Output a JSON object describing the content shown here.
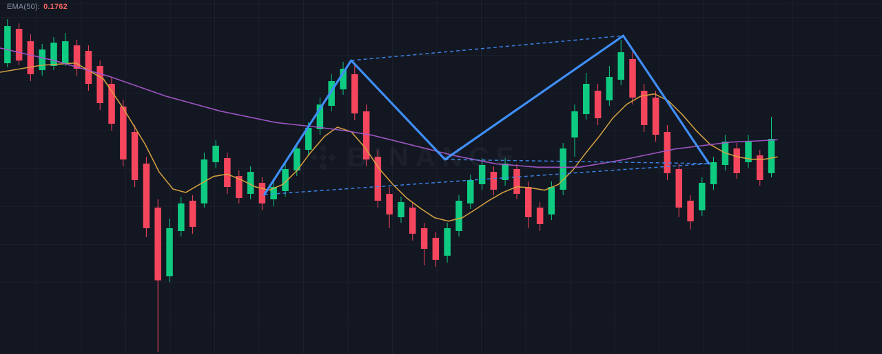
{
  "legend": {
    "label": "EMA(50):",
    "value": "0.1762",
    "value_color": "#f4655f"
  },
  "watermark": {
    "text": "BINANCE"
  },
  "colors": {
    "background": "#131722",
    "grid": "rgba(150,160,180,0.06)",
    "bull": "#0ecb81",
    "bear": "#f6465d",
    "ema_fast": "#d9a441",
    "ma_slow": "#a557c9",
    "pattern": "#3f8ef7"
  },
  "chart_data": {
    "type": "candlestick",
    "title": "",
    "grid": true,
    "price_axis_visible": false,
    "time_axis_visible": false,
    "ylim": [
      0.1591,
      0.19
    ],
    "ohlc_format": [
      "open",
      "high",
      "low",
      "close"
    ],
    "candles": [
      [
        0.18448,
        0.18832,
        0.18412,
        0.18772
      ],
      [
        0.18748,
        0.18796,
        0.1843,
        0.18472
      ],
      [
        0.1864,
        0.187,
        0.18292,
        0.18352
      ],
      [
        0.18388,
        0.18616,
        0.1834,
        0.18568
      ],
      [
        0.18424,
        0.18676,
        0.18388,
        0.18628
      ],
      [
        0.18448,
        0.18712,
        0.18424,
        0.1864
      ],
      [
        0.18604,
        0.18652,
        0.1834,
        0.184
      ],
      [
        0.18556,
        0.18604,
        0.18208,
        0.18268
      ],
      [
        0.18424,
        0.18472,
        0.1804,
        0.181
      ],
      [
        0.18268,
        0.18328,
        0.1786,
        0.1792
      ],
      [
        0.1807,
        0.1813,
        0.17548,
        0.17608
      ],
      [
        0.17848,
        0.17908,
        0.17368,
        0.17428
      ],
      [
        0.17572,
        0.17632,
        0.1693,
        0.17008
      ],
      [
        0.17188,
        0.1726,
        0.15928,
        0.16552
      ],
      [
        0.16588,
        0.17092,
        0.1654,
        0.17008
      ],
      [
        0.16984,
        0.17284,
        0.16936,
        0.17224
      ],
      [
        0.17248,
        0.17296,
        0.1696,
        0.1702
      ],
      [
        0.17224,
        0.17668,
        0.17188,
        0.17608
      ],
      [
        0.17584,
        0.17776,
        0.17536,
        0.17728
      ],
      [
        0.1762,
        0.17668,
        0.17308,
        0.17368
      ],
      [
        0.17464,
        0.17512,
        0.17224,
        0.17272
      ],
      [
        0.17308,
        0.17548,
        0.1726,
        0.175
      ],
      [
        0.17404,
        0.17452,
        0.17164,
        0.17224
      ],
      [
        0.1726,
        0.17428,
        0.172,
        0.17368
      ],
      [
        0.17332,
        0.17572,
        0.17284,
        0.17524
      ],
      [
        0.17512,
        0.17752,
        0.17464,
        0.17704
      ],
      [
        0.17692,
        0.17932,
        0.17644,
        0.17884
      ],
      [
        0.17872,
        0.18148,
        0.17824,
        0.18088
      ],
      [
        0.18076,
        0.18352,
        0.18028,
        0.18292
      ],
      [
        0.1822,
        0.1846,
        0.18172,
        0.184
      ],
      [
        0.18352,
        0.18448,
        0.1795,
        0.1801
      ],
      [
        0.18028,
        0.18088,
        0.17548,
        0.17608
      ],
      [
        0.17632,
        0.17692,
        0.17188,
        0.17248
      ],
      [
        0.17308,
        0.17368,
        0.17008,
        0.17128
      ],
      [
        0.17104,
        0.17284,
        0.17056,
        0.17236
      ],
      [
        0.17188,
        0.17236,
        0.169,
        0.1696
      ],
      [
        0.17008,
        0.17056,
        0.16684,
        0.16828
      ],
      [
        0.16924,
        0.16972,
        0.16672,
        0.16732
      ],
      [
        0.16768,
        0.17056,
        0.16708,
        0.17008
      ],
      [
        0.16984,
        0.17296,
        0.16936,
        0.17248
      ],
      [
        0.17224,
        0.17476,
        0.17176,
        0.17428
      ],
      [
        0.17392,
        0.1762,
        0.17344,
        0.1756
      ],
      [
        0.175,
        0.17548,
        0.17296,
        0.17344
      ],
      [
        0.17428,
        0.1762,
        0.1738,
        0.17572
      ],
      [
        0.17524,
        0.17572,
        0.1726,
        0.17308
      ],
      [
        0.17368,
        0.17416,
        0.17008,
        0.17104
      ],
      [
        0.17188,
        0.17236,
        0.16984,
        0.17044
      ],
      [
        0.17128,
        0.17416,
        0.1708,
        0.17368
      ],
      [
        0.17344,
        0.17752,
        0.17296,
        0.17704
      ],
      [
        0.178,
        0.18088,
        0.17632,
        0.18028
      ],
      [
        0.18004,
        0.18364,
        0.17956,
        0.18268
      ],
      [
        0.18208,
        0.18268,
        0.17908,
        0.17968
      ],
      [
        0.18124,
        0.18424,
        0.18076,
        0.18328
      ],
      [
        0.18304,
        0.18652,
        0.18256,
        0.18544
      ],
      [
        0.18484,
        0.1858,
        0.18088,
        0.18148
      ],
      [
        0.18208,
        0.18268,
        0.17848,
        0.17908
      ],
      [
        0.18148,
        0.18208,
        0.17764,
        0.17824
      ],
      [
        0.17848,
        0.17908,
        0.17428,
        0.17488
      ],
      [
        0.17524,
        0.17572,
        0.17104,
        0.17188
      ],
      [
        0.17248,
        0.17296,
        0.16996,
        0.17068
      ],
      [
        0.17164,
        0.17452,
        0.17116,
        0.17404
      ],
      [
        0.17392,
        0.17632,
        0.17344,
        0.17584
      ],
      [
        0.1756,
        0.17824,
        0.17512,
        0.17764
      ],
      [
        0.17704,
        0.17752,
        0.1744,
        0.17488
      ],
      [
        0.17584,
        0.17824,
        0.17536,
        0.17764
      ],
      [
        0.17644,
        0.17692,
        0.1738,
        0.17428
      ],
      [
        0.17488,
        0.1798,
        0.17452,
        0.17788
      ]
    ],
    "overlays": [
      {
        "name": "EMA(50)",
        "type": "line",
        "color_key": "ema_fast",
        "points": [
          [
            -0.6,
            0.1837
          ],
          [
            2.9,
            0.1843
          ],
          [
            5.9,
            0.1845
          ],
          [
            8.3,
            0.1831
          ],
          [
            10.1,
            0.1804
          ],
          [
            11.9,
            0.1774
          ],
          [
            13.1,
            0.175
          ],
          [
            14.3,
            0.1735
          ],
          [
            15.4,
            0.1732
          ],
          [
            16.6,
            0.1739
          ],
          [
            17.8,
            0.1746
          ],
          [
            19.0,
            0.1748
          ],
          [
            20.2,
            0.1743
          ],
          [
            21.4,
            0.1737
          ],
          [
            22.6,
            0.1734
          ],
          [
            23.8,
            0.1739
          ],
          [
            25.0,
            0.1751
          ],
          [
            26.2,
            0.1767
          ],
          [
            27.4,
            0.1781
          ],
          [
            28.5,
            0.1789
          ],
          [
            29.7,
            0.1785
          ],
          [
            30.9,
            0.1771
          ],
          [
            32.1,
            0.1753
          ],
          [
            33.3,
            0.1739
          ],
          [
            34.5,
            0.1727
          ],
          [
            35.7,
            0.1718
          ],
          [
            36.9,
            0.171
          ],
          [
            38.1,
            0.1707
          ],
          [
            39.3,
            0.171
          ],
          [
            40.4,
            0.1717
          ],
          [
            41.6,
            0.1725
          ],
          [
            42.8,
            0.1732
          ],
          [
            44.0,
            0.1737
          ],
          [
            45.2,
            0.1736
          ],
          [
            46.4,
            0.1734
          ],
          [
            47.6,
            0.1739
          ],
          [
            48.8,
            0.1751
          ],
          [
            50.0,
            0.1767
          ],
          [
            51.2,
            0.1782
          ],
          [
            52.3,
            0.1797
          ],
          [
            53.5,
            0.1809
          ],
          [
            54.7,
            0.1816
          ],
          [
            55.9,
            0.1818
          ],
          [
            57.1,
            0.1812
          ],
          [
            58.3,
            0.18
          ],
          [
            59.5,
            0.1786
          ],
          [
            60.7,
            0.1774
          ],
          [
            61.9,
            0.1767
          ],
          [
            63.1,
            0.1763
          ],
          [
            64.3,
            0.1761
          ],
          [
            65.4,
            0.1761
          ],
          [
            66.5,
            0.1763
          ]
        ]
      },
      {
        "name": "MA-slow",
        "type": "line",
        "color_key": "ma_slow",
        "points": [
          [
            -0.6,
            0.1858
          ],
          [
            4.1,
            0.1847
          ],
          [
            8.9,
            0.1833
          ],
          [
            13.7,
            0.1816
          ],
          [
            18.4,
            0.1803
          ],
          [
            23.2,
            0.1793
          ],
          [
            26.8,
            0.1789
          ],
          [
            29.1,
            0.1786
          ],
          [
            31.5,
            0.1782
          ],
          [
            35.1,
            0.1773
          ],
          [
            38.7,
            0.1764
          ],
          [
            42.2,
            0.1757
          ],
          [
            45.8,
            0.1754
          ],
          [
            49.4,
            0.1754
          ],
          [
            52.9,
            0.176
          ],
          [
            55.3,
            0.1765
          ],
          [
            57.7,
            0.177
          ],
          [
            60.1,
            0.1773
          ],
          [
            62.5,
            0.1776
          ],
          [
            64.8,
            0.1777
          ],
          [
            66.5,
            0.1778
          ]
        ]
      }
    ],
    "drawings": {
      "solid_zigzag": {
        "description": "double-top pattern annotation",
        "points": [
          [
            22.2,
            0.17302
          ],
          [
            29.7,
            0.18472
          ],
          [
            37.8,
            0.17608
          ],
          [
            53.2,
            0.18688
          ],
          [
            60.6,
            0.17572
          ]
        ]
      },
      "dashed_segments": [
        [
          [
            29.7,
            0.18472
          ],
          [
            53.2,
            0.18688
          ]
        ],
        [
          [
            22.2,
            0.17302
          ],
          [
            60.6,
            0.17572
          ]
        ],
        [
          [
            37.8,
            0.17608
          ],
          [
            60.6,
            0.17572
          ]
        ]
      ]
    }
  }
}
